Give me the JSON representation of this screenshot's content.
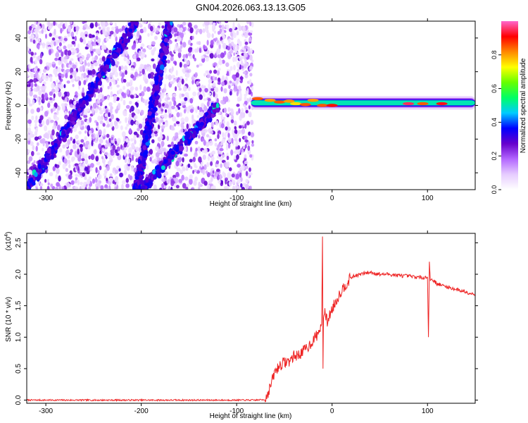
{
  "title": "GN04.2026.063.13.13.G05",
  "chart_data": [
    {
      "type": "heatmap",
      "xlabel": "Height of straight line (km)",
      "ylabel": "Frequency (Hz)",
      "xlim": [
        -320,
        150
      ],
      "ylim": [
        -50,
        50
      ],
      "xticks": [
        -300,
        -200,
        -100,
        0,
        100
      ],
      "yticks": [
        -40,
        -20,
        0,
        20,
        40
      ],
      "colorbar": {
        "label": "Normalized spectral amplitude",
        "range": [
          0.0,
          1.0
        ],
        "ticks": [
          0.0,
          0.2,
          0.4,
          0.6,
          0.8
        ],
        "colors": [
          "#ffffff",
          "#e6ccff",
          "#b366ff",
          "#6600cc",
          "#0000ff",
          "#00ccff",
          "#00ff66",
          "#66ff00",
          "#ffff00",
          "#ff8800",
          "#ff0000",
          "#ff66cc"
        ]
      },
      "features": [
        {
          "kind": "noise_region",
          "x": [
            -320,
            -83
          ],
          "y": [
            -50,
            50
          ]
        },
        {
          "kind": "diagonal_band",
          "x": [
            -320,
            -205
          ],
          "y": [
            -50,
            50
          ]
        },
        {
          "kind": "diagonal_band",
          "x": [
            -205,
            -170
          ],
          "y": [
            -50,
            50
          ]
        },
        {
          "kind": "diagonal_band",
          "x": [
            -200,
            -120
          ],
          "y": [
            -50,
            0
          ]
        },
        {
          "kind": "horizontal_band",
          "x": [
            -85,
            150
          ],
          "y": [
            -1,
            4
          ]
        }
      ]
    },
    {
      "type": "line",
      "xlabel": "Height of straight line (km)",
      "ylabel": "SNR (10 * v/v)",
      "y_scale_label": "(x10",
      "y_scale_exp": "4",
      "xlim": [
        -320,
        150
      ],
      "ylim": [
        -0.05,
        2.65
      ],
      "xticks": [
        -300,
        -200,
        -100,
        0,
        100
      ],
      "yticks": [
        0.0,
        0.5,
        1.0,
        1.5,
        2.0,
        2.5
      ],
      "color": "#ee2222",
      "series": [
        {
          "x": [
            -320,
            -300,
            -250,
            -200,
            -150,
            -100,
            -80,
            -70,
            -65,
            -60,
            -55,
            -50,
            -45,
            -40,
            -35,
            -30,
            -25,
            -20,
            -15,
            -11,
            -10,
            -9.5,
            -9,
            -8,
            -5,
            0,
            5,
            10,
            15,
            20,
            25,
            30,
            35,
            40,
            50,
            60,
            70,
            80,
            90,
            100,
            101,
            102,
            103,
            104,
            105,
            110,
            120,
            130,
            140,
            150
          ],
          "y": [
            0.0,
            0.0,
            0.0,
            0.0,
            0.0,
            0.0,
            0.0,
            0.01,
            0.2,
            0.45,
            0.55,
            0.6,
            0.62,
            0.7,
            0.72,
            0.78,
            0.85,
            0.95,
            1.05,
            1.2,
            2.6,
            0.5,
            1.3,
            1.4,
            1.25,
            1.45,
            1.6,
            1.75,
            1.85,
            1.95,
            1.98,
            2.0,
            2.02,
            2.03,
            2.0,
            2.0,
            1.98,
            1.97,
            1.95,
            1.95,
            1.0,
            2.2,
            1.9,
            1.92,
            1.92,
            1.85,
            1.8,
            1.76,
            1.72,
            1.68
          ]
        }
      ]
    }
  ]
}
